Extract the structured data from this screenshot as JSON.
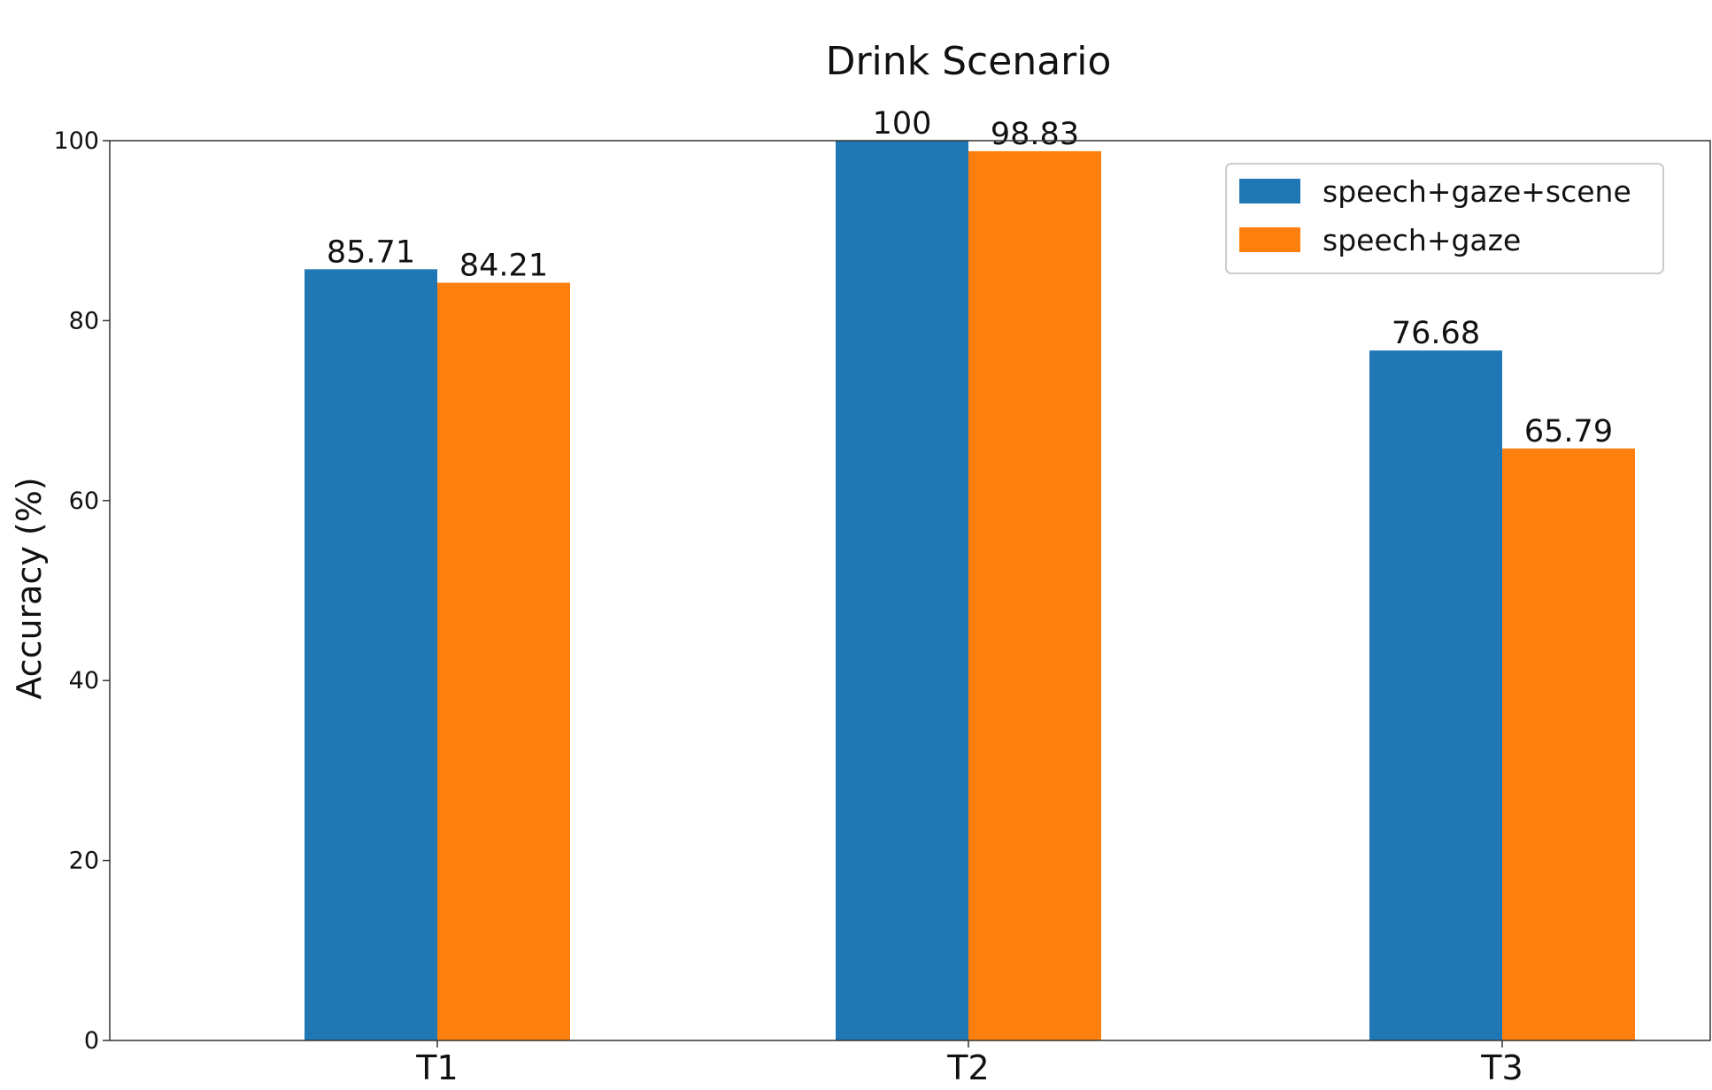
{
  "chart_data": {
    "type": "bar",
    "title": "Drink Scenario",
    "xlabel": "",
    "ylabel": "Accuracy (%)",
    "categories": [
      "T1",
      "T2",
      "T3"
    ],
    "series": [
      {
        "name": "speech+gaze+scene",
        "values": [
          85.71,
          100,
          76.68
        ],
        "labels": [
          "85.71",
          "100",
          "76.68"
        ],
        "color": "#1f77b4"
      },
      {
        "name": "speech+gaze",
        "values": [
          84.21,
          98.83,
          65.79
        ],
        "labels": [
          "84.21",
          "98.83",
          "65.79"
        ],
        "color": "#ff7f0e"
      }
    ],
    "ylim": [
      0,
      100
    ],
    "yticks": [
      0,
      20,
      40,
      60,
      80,
      100
    ],
    "grid": false,
    "legend_position": "top-right"
  }
}
